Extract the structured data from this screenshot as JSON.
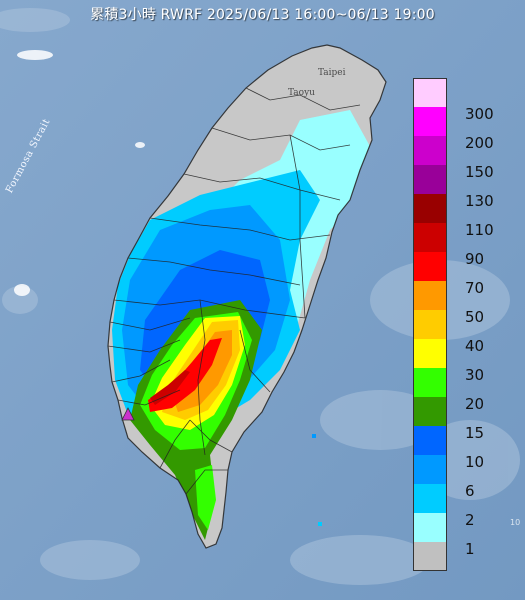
{
  "title": "累積3小時 RWRF 2025/06/13 16:00~06/13 19:00",
  "strait_label": "Formosa Strait",
  "cities": {
    "taipei": "Taipei",
    "taoyuan": "Taoyu"
  },
  "edge_mark": "10",
  "legend": [
    {
      "label": "300",
      "color": "#ffccff"
    },
    {
      "label": "200",
      "color": "#ff00ff"
    },
    {
      "label": "150",
      "color": "#cc00cc"
    },
    {
      "label": "130",
      "color": "#990099"
    },
    {
      "label": "110",
      "color": "#990000"
    },
    {
      "label": "90",
      "color": "#cc0000"
    },
    {
      "label": "70",
      "color": "#ff0000"
    },
    {
      "label": "50",
      "color": "#ff9900"
    },
    {
      "label": "40",
      "color": "#ffcc00"
    },
    {
      "label": "30",
      "color": "#ffff00"
    },
    {
      "label": "20",
      "color": "#33ff00"
    },
    {
      "label": "15",
      "color": "#339900"
    },
    {
      "label": "10",
      "color": "#0066ff"
    },
    {
      "label": "6",
      "color": "#0099ff"
    },
    {
      "label": "2",
      "color": "#00ccff"
    },
    {
      "label": "1",
      "color": "#99ffff"
    },
    {
      "label": "",
      "color": "#c0c0c0"
    }
  ],
  "marker_icon": "triangle-marker-icon",
  "colors": {
    "sea": "#7ea3c9",
    "land_no_rain": "#c8c8c8",
    "boundary": "#222222"
  }
}
